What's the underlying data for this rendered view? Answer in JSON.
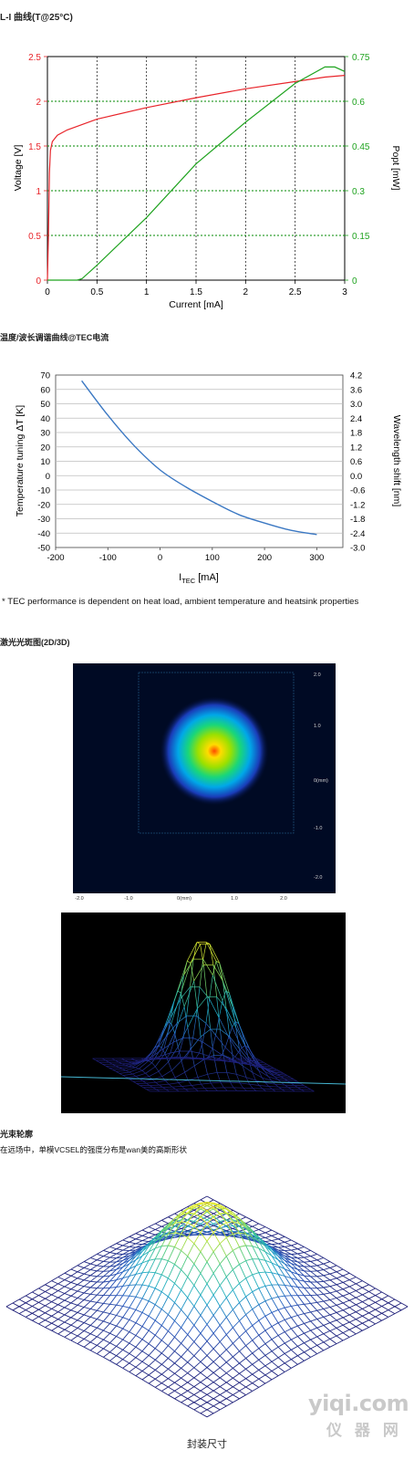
{
  "sections": {
    "li_title": "L-I 曲线(T@25°C)",
    "tec_title": "温度/波长调谐曲线@TEC电流",
    "tec_note": "* TEC performance is dependent on heat load, ambient temperature and heatsink properties",
    "spot_title": "激光光斑图(2D/3D)",
    "profile_title": "光束轮廓",
    "profile_desc": "在远场中，单模VCSEL的强度分布是wan美的高斯形状",
    "package_caption": "封装尺寸"
  },
  "watermark": {
    "line1": "yiqi.com",
    "line2": "仪 器 网"
  },
  "colors": {
    "voltage": "#e8242a",
    "power": "#1fa31f",
    "tec_curve": "#3b78c3",
    "grid_green": "#008a00"
  },
  "chart_data": [
    {
      "type": "line",
      "title": "",
      "xlabel": "Current [mA]",
      "ylabel_left": "Voltage [V]",
      "ylabel_right": "Popt [mW]",
      "xlim": [
        0,
        3
      ],
      "ylim_left": [
        0,
        2.5
      ],
      "ylim_right": [
        0,
        0.75
      ],
      "x_ticks": [
        "0",
        "0.5",
        "1",
        "1.5",
        "2",
        "2.5",
        "3"
      ],
      "y_left_ticks": [
        "0",
        "0.5",
        "1",
        "1.5",
        "2",
        "2.5"
      ],
      "y_right_ticks": [
        "0",
        "0.15",
        "0.3",
        "0.45",
        "0.6",
        "0.75"
      ],
      "grid": "dotted",
      "series": [
        {
          "name": "",
          "axis": "left",
          "x": [
            0,
            0.01,
            0.02,
            0.03,
            0.05,
            0.1,
            0.2,
            0.5,
            1,
            1.5,
            2,
            2.5,
            2.8,
            3
          ],
          "y": [
            0,
            0.5,
            1.2,
            1.45,
            1.55,
            1.62,
            1.68,
            1.8,
            1.93,
            2.04,
            2.14,
            2.22,
            2.27,
            2.29
          ]
        },
        {
          "name": "",
          "axis": "right",
          "x": [
            0,
            0.3,
            0.35,
            0.5,
            1,
            1.5,
            2,
            2.5,
            2.8,
            2.9,
            3
          ],
          "y": [
            0,
            0,
            0.005,
            0.05,
            0.21,
            0.39,
            0.53,
            0.66,
            0.715,
            0.715,
            0.7
          ]
        }
      ]
    },
    {
      "type": "line",
      "title": "",
      "xlabel": "I",
      "xlabel_sub": "TEC",
      "xlabel_unit": " [mA]",
      "ylabel_left": "Temperature tuning ΔT [K]",
      "ylabel_right": "Wavelength shift [nm]",
      "xlim": [
        -200,
        350
      ],
      "ylim_left": [
        -50,
        70
      ],
      "ylim_right": [
        -3.0,
        4.2
      ],
      "x_ticks": [
        "-200",
        "-100",
        "0",
        "100",
        "200",
        "300"
      ],
      "y_left_ticks": [
        "-50",
        "-40",
        "-30",
        "-20",
        "-10",
        "0",
        "10",
        "20",
        "30",
        "40",
        "50",
        "60",
        "70"
      ],
      "y_right_ticks": [
        "-3.0",
        "-2.4",
        "-1.8",
        "-1.2",
        "-0.6",
        "0.0",
        "0.6",
        "1.2",
        "1.8",
        "2.4",
        "3.0",
        "3.6",
        "4.2"
      ],
      "grid": "horizontal",
      "series": [
        {
          "name": "",
          "x": [
            -150,
            -100,
            -50,
            0,
            50,
            100,
            150,
            200,
            250,
            300
          ],
          "y": [
            66,
            42,
            21,
            4,
            -8,
            -18,
            -27,
            -33,
            -38,
            -41
          ]
        }
      ]
    },
    {
      "type": "heatmap",
      "name": "2D laser spot",
      "x_ticks": [
        "-2.0",
        "-1.0",
        "0(mm)",
        "1.0",
        "2.0"
      ],
      "y_ticks": [
        "2.0",
        "1.0",
        "0(mm)",
        "-1.0",
        "-2.0"
      ]
    },
    {
      "type": "surface",
      "name": "3D laser spot"
    },
    {
      "type": "surface",
      "name": "beam profile"
    }
  ]
}
